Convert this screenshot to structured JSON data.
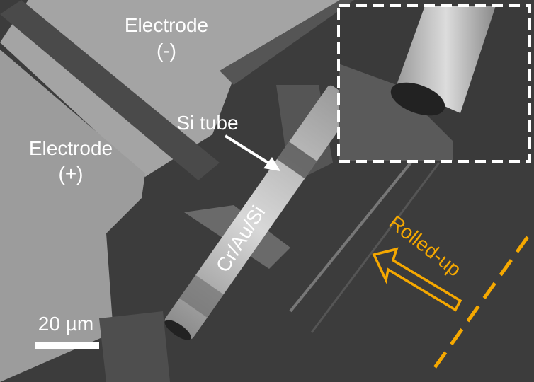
{
  "labels": {
    "electrode_neg": "Electrode",
    "electrode_neg_sign": "(-)",
    "electrode_pos": "Electrode",
    "electrode_pos_sign": "(+)",
    "si_tube": "Si tube",
    "layers": "Cr/Au/Si",
    "rolled_up": "Rolled-up",
    "scale_bar": "20 µm"
  },
  "colors": {
    "annotation_orange": "#f5a800",
    "annotation_white": "#ffffff"
  }
}
